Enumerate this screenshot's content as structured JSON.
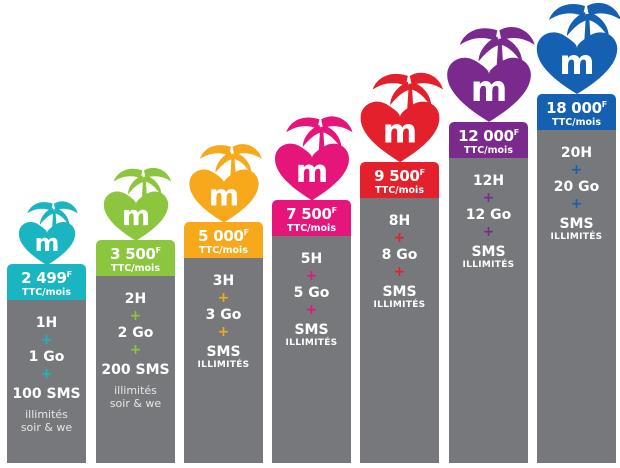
{
  "plans": [
    {
      "price": "2 499",
      "currency": "F",
      "unit": "TTC/mois",
      "voice": "1H",
      "data": "1 Go",
      "sms": "100 SMS",
      "sms_sub": "",
      "note_1": "illimités",
      "note_2": "soir & we",
      "color": "#19b5c0"
    },
    {
      "price": "3 500",
      "currency": "F",
      "unit": "TTC/mois",
      "voice": "2H",
      "data": "2 Go",
      "sms": "200 SMS",
      "sms_sub": "",
      "note_1": "illimités",
      "note_2": "soir & we",
      "color": "#8cc63f"
    },
    {
      "price": "5 000",
      "currency": "F",
      "unit": "TTC/mois",
      "voice": "3H",
      "data": "3 Go",
      "sms": "SMS",
      "sms_sub": "ILLIMITÉS",
      "note_1": "",
      "note_2": "",
      "color": "#f7a81b"
    },
    {
      "price": "7 500",
      "currency": "F",
      "unit": "TTC/mois",
      "voice": "5H",
      "data": "5 Go",
      "sms": "SMS",
      "sms_sub": "ILLIMITÉS",
      "note_1": "",
      "note_2": "",
      "color": "#e5157a"
    },
    {
      "price": "9 500",
      "currency": "F",
      "unit": "TTC/mois",
      "voice": "8H",
      "data": "8 Go",
      "sms": "SMS",
      "sms_sub": "ILLIMITÉS",
      "note_1": "",
      "note_2": "",
      "color": "#e3202b"
    },
    {
      "price": "12 000",
      "currency": "F",
      "unit": "TTC/mois",
      "voice": "12H",
      "data": "12 Go",
      "sms": "SMS",
      "sms_sub": "ILLIMITÉS",
      "note_1": "",
      "note_2": "",
      "color": "#7a2a8c"
    },
    {
      "price": "18 000",
      "currency": "F",
      "unit": "TTC/mois",
      "voice": "20H",
      "data": "20 Go",
      "sms": "SMS",
      "sms_sub": "ILLIMITÉS",
      "note_1": "",
      "note_2": "",
      "color": "#1560b0"
    }
  ],
  "plus_symbol": "+",
  "logo_letter": "m"
}
